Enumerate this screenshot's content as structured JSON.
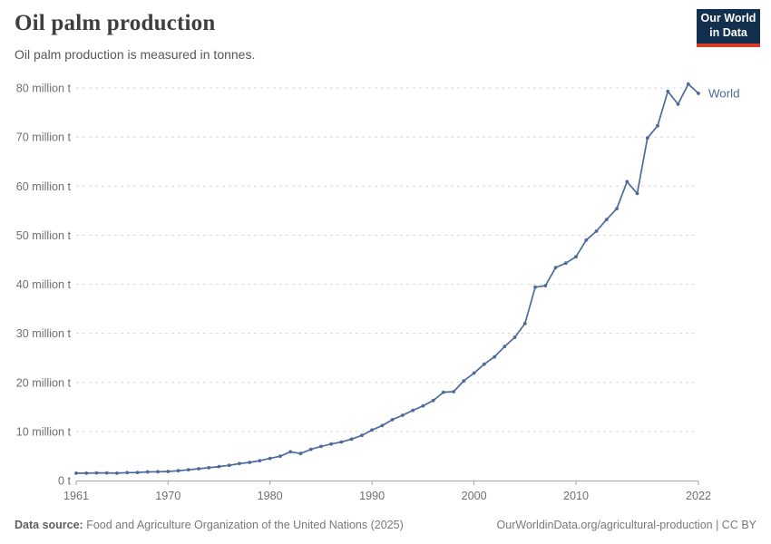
{
  "header": {
    "title": "Oil palm production",
    "subtitle": "Oil palm production is measured in tonnes."
  },
  "logo": {
    "line1": "Our World",
    "line2": "in Data",
    "bg_color": "#12304e",
    "bar_color": "#d93d23"
  },
  "chart_data": {
    "type": "line",
    "title": "Oil palm production",
    "unit": "tonnes",
    "values_unit": "million tonnes",
    "grid": "horizontal-dashed",
    "legend": "end-of-line-label",
    "xlim": [
      1961,
      2022
    ],
    "ylim": [
      0,
      80
    ],
    "xticks": [
      1961,
      1970,
      1980,
      1990,
      2000,
      2010,
      2022
    ],
    "yticks": [
      0,
      10,
      20,
      30,
      40,
      50,
      60,
      70,
      80
    ],
    "ytick_labels": [
      "0 t",
      "10 million t",
      "20 million t",
      "30 million t",
      "40 million t",
      "50 million t",
      "60 million t",
      "70 million t",
      "80 million t"
    ],
    "series": [
      {
        "name": "World",
        "color": "#4c6a9c",
        "years": [
          1961,
          1962,
          1963,
          1964,
          1965,
          1966,
          1967,
          1968,
          1969,
          1970,
          1971,
          1972,
          1973,
          1974,
          1975,
          1976,
          1977,
          1978,
          1979,
          1980,
          1981,
          1982,
          1983,
          1984,
          1985,
          1986,
          1987,
          1988,
          1989,
          1990,
          1991,
          1992,
          1993,
          1994,
          1995,
          1996,
          1997,
          1998,
          1999,
          2000,
          2001,
          2002,
          2003,
          2004,
          2005,
          2006,
          2007,
          2008,
          2009,
          2010,
          2011,
          2012,
          2013,
          2014,
          2015,
          2016,
          2017,
          2018,
          2019,
          2020,
          2021,
          2022
        ],
        "values_million_tonnes": [
          1.5,
          1.5,
          1.55,
          1.55,
          1.5,
          1.6,
          1.65,
          1.75,
          1.8,
          1.85,
          2.0,
          2.2,
          2.4,
          2.6,
          2.85,
          3.1,
          3.45,
          3.7,
          4.05,
          4.5,
          4.95,
          5.85,
          5.5,
          6.35,
          6.95,
          7.45,
          7.85,
          8.45,
          9.2,
          10.3,
          11.2,
          12.4,
          13.3,
          14.3,
          15.2,
          16.3,
          18.0,
          18.1,
          20.3,
          21.9,
          23.7,
          25.2,
          27.3,
          29.2,
          32.0,
          39.4,
          39.7,
          43.4,
          44.3,
          45.6,
          49.0,
          50.8,
          53.2,
          55.4,
          60.9,
          58.5,
          69.8,
          72.3,
          79.3,
          76.7,
          80.8,
          78.9
        ]
      }
    ]
  },
  "footer": {
    "source_label": "Data source:",
    "source_text": "Food and Agriculture Organization of the United Nations (2025)",
    "attribution": "OurWorldinData.org/agricultural-production | CC BY"
  }
}
